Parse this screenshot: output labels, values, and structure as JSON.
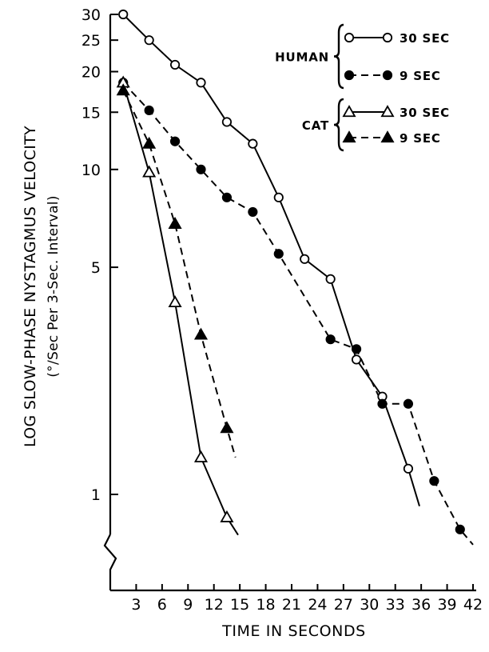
{
  "chart_data": {
    "type": "line",
    "y_scale": "log",
    "xlabel": "TIME IN SECONDS",
    "ylabel": "LOG SLOW-PHASE NYSTAGMUS VELOCITY",
    "ylabel_sub": "(°/Sec Per 3-Sec. Interval)",
    "xlim": [
      0,
      42
    ],
    "ylim": [
      0.6,
      30
    ],
    "x_ticks": [
      3,
      6,
      9,
      12,
      15,
      18,
      21,
      24,
      27,
      30,
      33,
      36,
      39,
      42
    ],
    "x_tick_labels": [
      "3",
      "6",
      "9",
      "12",
      "15",
      "18",
      "21",
      "24",
      "27",
      "30",
      "33",
      "36",
      "39",
      "42"
    ],
    "y_ticks": [
      1,
      5,
      10,
      15,
      20,
      25,
      30
    ],
    "y_tick_labels": [
      "1",
      "5",
      "10",
      "15",
      "20",
      "25",
      "30"
    ],
    "axis_break": true,
    "grid": false,
    "legend_position": "top-right",
    "legend_groups": [
      {
        "label": "HUMAN",
        "entries": [
          {
            "series": 0,
            "label": "30 SEC"
          },
          {
            "series": 1,
            "label": "9 SEC"
          }
        ]
      },
      {
        "label": "CAT",
        "entries": [
          {
            "series": 2,
            "label": "30 SEC"
          },
          {
            "series": 3,
            "label": "9 SEC"
          }
        ]
      }
    ],
    "series": [
      {
        "name": "HUMAN 30 SEC",
        "marker": "open-circle",
        "line": "solid",
        "x": [
          1.5,
          4.5,
          7.5,
          10.5,
          13.5,
          16.5,
          19.5,
          22.5,
          25.5,
          28.5,
          31.5,
          34.5
        ],
        "y": [
          30,
          25,
          21,
          18.5,
          14,
          12,
          8.2,
          5.3,
          4.6,
          2.6,
          2.0,
          1.2
        ],
        "tail": [
          35.8,
          0.92
        ]
      },
      {
        "name": "HUMAN 9 SEC",
        "marker": "filled-circle",
        "line": "dashed",
        "x": [
          1.5,
          4.5,
          7.5,
          10.5,
          13.5,
          16.5,
          19.5,
          25.5,
          28.5,
          31.5,
          34.5,
          37.5,
          40.5
        ],
        "y": [
          18.5,
          15.2,
          12.2,
          10,
          8.2,
          7.4,
          5.5,
          3.0,
          2.8,
          1.9,
          1.9,
          1.1,
          0.78
        ],
        "tail": [
          42,
          0.7
        ]
      },
      {
        "name": "CAT 30 SEC",
        "marker": "open-triangle",
        "line": "solid",
        "x": [
          1.5,
          4.5,
          7.5,
          10.5,
          13.5
        ],
        "y": [
          18.5,
          9.8,
          3.9,
          1.3,
          0.85
        ],
        "tail": [
          14.8,
          0.75
        ]
      },
      {
        "name": "CAT 9 SEC",
        "marker": "filled-triangle",
        "line": "dashed",
        "x": [
          1.5,
          4.5,
          7.5,
          10.5,
          13.5
        ],
        "y": [
          17.5,
          12,
          6.8,
          3.1,
          1.6
        ],
        "tail": [
          14.5,
          1.3
        ]
      }
    ]
  }
}
